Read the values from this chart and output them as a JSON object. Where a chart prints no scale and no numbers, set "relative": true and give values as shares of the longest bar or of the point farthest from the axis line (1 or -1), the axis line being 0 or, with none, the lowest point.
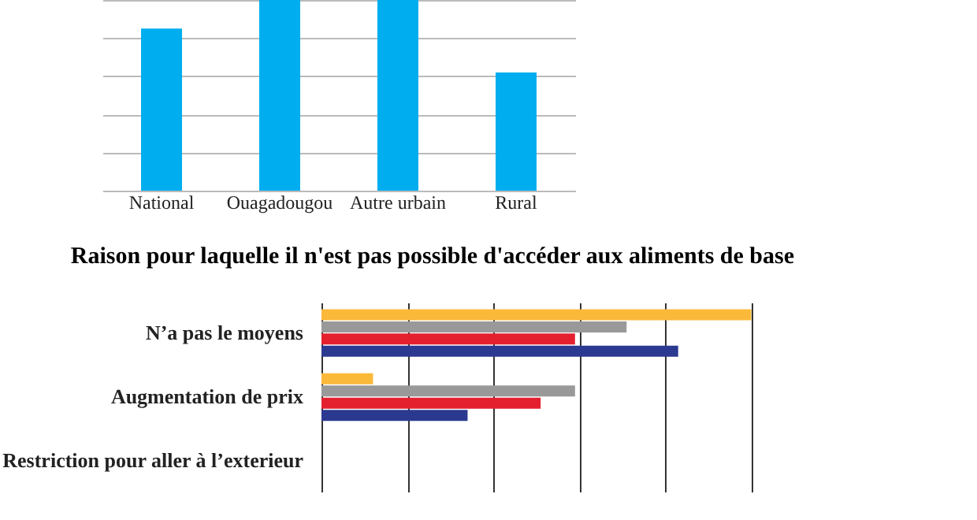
{
  "chart_data": [
    {
      "type": "bar",
      "categories": [
        "National",
        "Ouagadougou",
        "Autre urbain",
        "Rural"
      ],
      "values": [
        0.85,
        1,
        1,
        0.62
      ],
      "color": "#00aeef",
      "relative": true,
      "grid": "y"
    },
    {
      "type": "bar",
      "title": "Raison pour laquelle il n'est pas possible d'accéder aux aliments de base",
      "orientation": "horizontal",
      "categories": [
        "N’a pas le moyens",
        "Augmentation de prix",
        "Restriction pour aller à l’exterieur"
      ],
      "relative": true,
      "grid": "x",
      "series": [
        {
          "color": "#fbb93a",
          "values": [
            1,
            0.12,
            0
          ]
        },
        {
          "color": "#999999",
          "values": [
            0.71,
            0.59,
            0
          ]
        },
        {
          "color": "#e4202f",
          "values": [
            0.59,
            0.51,
            0
          ]
        },
        {
          "color": "#2b3990",
          "values": [
            0.83,
            0.34,
            0
          ]
        }
      ]
    }
  ]
}
